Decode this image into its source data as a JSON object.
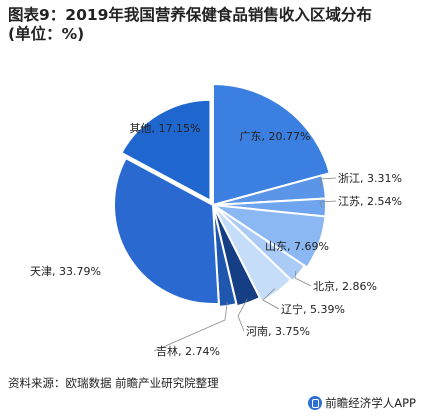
{
  "title": "图表9：2019年我国营养保健食品销售收入区域分布",
  "subtitle": "(单位：%)",
  "source": "资料来源：欧瑞数据 前瞻产业研究院整理",
  "brand": "前瞻经济学人APP",
  "chart_data": {
    "type": "pie",
    "title": "图表9：2019年我国营养保健食品销售收入区域分布",
    "unit": "%",
    "slices": [
      {
        "label": "广东",
        "value": 20.77,
        "display": "20.77%",
        "color": "#3b7fe0"
      },
      {
        "label": "浙江",
        "value": 3.31,
        "display": "3.31%",
        "color": "#5a95e8"
      },
      {
        "label": "江苏",
        "value": 2.54,
        "display": "2.54%",
        "color": "#6fa5ee"
      },
      {
        "label": "山东",
        "value": 7.69,
        "display": "7.69%",
        "color": "#8bb8f2"
      },
      {
        "label": "北京",
        "value": 2.86,
        "display": "2.86%",
        "color": "#a9cbf6"
      },
      {
        "label": "辽宁",
        "value": 5.39,
        "display": "5.39%",
        "color": "#c6ddf9"
      },
      {
        "label": "河南",
        "value": 3.75,
        "display": "3.75%",
        "color": "#163e84"
      },
      {
        "label": "吉林",
        "value": 2.74,
        "display": "2.74%",
        "color": "#1f56b0"
      },
      {
        "label": "天津",
        "value": 33.79,
        "display": "33.79%",
        "color": "#2a6ad0"
      },
      {
        "label": "其他",
        "value": 17.15,
        "display": "17.15%",
        "color": "#1f66cf"
      }
    ]
  }
}
